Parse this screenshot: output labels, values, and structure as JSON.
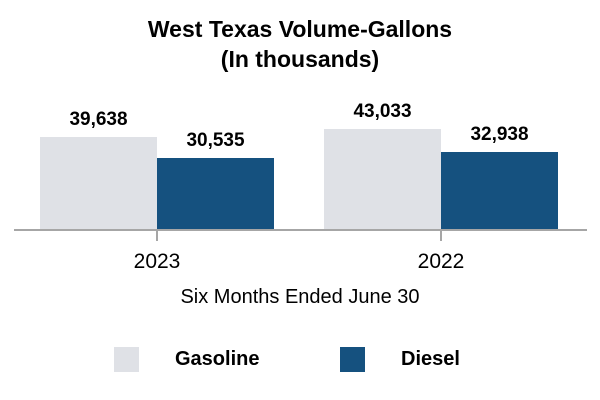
{
  "title": {
    "line1": "West Texas Volume-Gallons",
    "line2": "(In thousands)"
  },
  "axis": {
    "caption": "Six Months Ended June 30"
  },
  "colors": {
    "gasoline": "#dfe1e6",
    "diesel": "#15517f",
    "axis_line": "#a6a6a6",
    "text": "#000000",
    "background": "#ffffff"
  },
  "legend": {
    "items": [
      {
        "label": "Gasoline",
        "color": "#dfe1e6"
      },
      {
        "label": "Diesel",
        "color": "#15517f"
      }
    ]
  },
  "chart_data": {
    "type": "bar",
    "title": "West Texas Volume-Gallons (In thousands)",
    "categories": [
      "2023",
      "2022"
    ],
    "series": [
      {
        "name": "Gasoline",
        "color": "#dfe1e6",
        "values": [
          39638,
          43033
        ],
        "values_formatted": [
          "39,638",
          "43,033"
        ]
      },
      {
        "name": "Diesel",
        "color": "#15517f",
        "values": [
          30535,
          32938
        ],
        "values_formatted": [
          "30,535",
          "32,938"
        ]
      }
    ],
    "xlabel": "Six Months Ended June 30",
    "ylabel": "",
    "ylim": [
      0,
      45000
    ],
    "grid": false,
    "legend_position": "bottom",
    "value_labels_shown": true
  }
}
